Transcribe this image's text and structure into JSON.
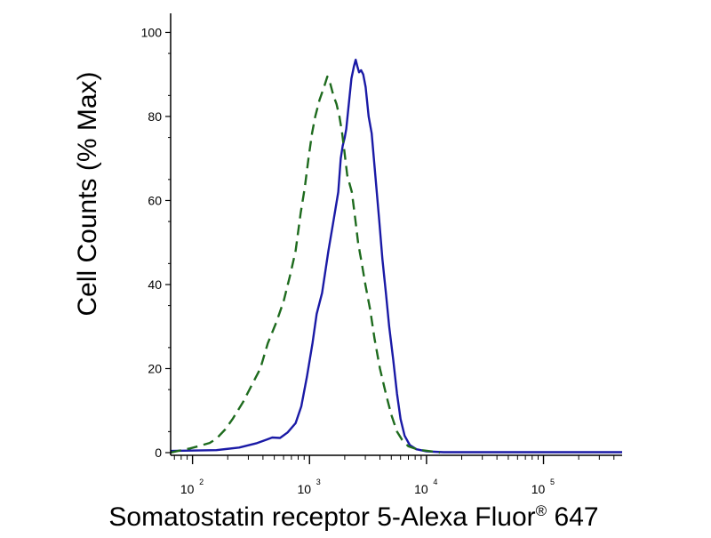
{
  "chart_data": {
    "type": "line",
    "title": "",
    "xlabel": "Somatostatin receptor 5-Alexa Fluor",
    "xlabel_superscript": "®",
    "xlabel_suffix": " 647",
    "ylabel": "Cell Counts (% Max)",
    "x_scale": "log",
    "xlim": [
      65,
      470000
    ],
    "ylim": [
      0,
      102
    ],
    "grid": false,
    "legend": "none",
    "x_ticks": [
      {
        "base": "10",
        "exp": "2",
        "value": 100
      },
      {
        "base": "10",
        "exp": "3",
        "value": 1000
      },
      {
        "base": "10",
        "exp": "4",
        "value": 10000
      },
      {
        "base": "10",
        "exp": "5",
        "value": 100000
      }
    ],
    "y_ticks": [
      {
        "label": "0",
        "value": 0
      },
      {
        "label": "20",
        "value": 20
      },
      {
        "label": "40",
        "value": 40
      },
      {
        "label": "60",
        "value": 60
      },
      {
        "label": "80",
        "value": 80
      },
      {
        "label": "100",
        "value": 100
      }
    ],
    "series": [
      {
        "color": "#1a1aa6",
        "style": "solid",
        "points": [
          [
            65,
            0.4
          ],
          [
            160,
            0.6
          ],
          [
            250,
            1.2
          ],
          [
            350,
            2.2
          ],
          [
            430,
            3.1
          ],
          [
            480,
            3.6
          ],
          [
            560,
            3.5
          ],
          [
            650,
            4.8
          ],
          [
            760,
            7
          ],
          [
            850,
            11
          ],
          [
            950,
            18
          ],
          [
            1060,
            26
          ],
          [
            1150,
            33
          ],
          [
            1280,
            38
          ],
          [
            1450,
            48
          ],
          [
            1600,
            55
          ],
          [
            1760,
            62
          ],
          [
            1850,
            70
          ],
          [
            1920,
            73
          ],
          [
            2000,
            75
          ],
          [
            2060,
            77
          ],
          [
            2150,
            82
          ],
          [
            2280,
            89
          ],
          [
            2400,
            92
          ],
          [
            2480,
            93.5
          ],
          [
            2560,
            92
          ],
          [
            2650,
            90.5
          ],
          [
            2760,
            91
          ],
          [
            2880,
            90
          ],
          [
            3020,
            87
          ],
          [
            3200,
            80
          ],
          [
            3400,
            76
          ],
          [
            3650,
            66
          ],
          [
            3950,
            55
          ],
          [
            4200,
            46
          ],
          [
            4500,
            38
          ],
          [
            4800,
            30
          ],
          [
            5200,
            22
          ],
          [
            5600,
            14
          ],
          [
            6000,
            8
          ],
          [
            6500,
            4
          ],
          [
            7200,
            1.8
          ],
          [
            8200,
            0.8
          ],
          [
            10000,
            0.3
          ],
          [
            14000,
            0.1
          ],
          [
            100000,
            0.1
          ],
          [
            470000,
            0.1
          ]
        ]
      },
      {
        "color": "#1e6b1e",
        "style": "dashed",
        "points": [
          [
            65,
            0
          ],
          [
            75,
            0.4
          ],
          [
            95,
            1
          ],
          [
            115,
            1.6
          ],
          [
            140,
            2.3
          ],
          [
            160,
            3.3
          ],
          [
            190,
            5.5
          ],
          [
            220,
            8
          ],
          [
            270,
            12
          ],
          [
            320,
            16
          ],
          [
            380,
            20
          ],
          [
            440,
            26
          ],
          [
            520,
            31
          ],
          [
            600,
            36
          ],
          [
            680,
            42
          ],
          [
            760,
            48
          ],
          [
            840,
            57
          ],
          [
            910,
            63
          ],
          [
            980,
            70
          ],
          [
            1050,
            76
          ],
          [
            1120,
            80
          ],
          [
            1220,
            84
          ],
          [
            1330,
            87
          ],
          [
            1420,
            89.5
          ],
          [
            1500,
            88
          ],
          [
            1600,
            85
          ],
          [
            1700,
            83
          ],
          [
            1800,
            80
          ],
          [
            1900,
            76
          ],
          [
            2000,
            71
          ],
          [
            2100,
            66
          ],
          [
            2200,
            64
          ],
          [
            2300,
            62
          ],
          [
            2450,
            56
          ],
          [
            2600,
            50
          ],
          [
            2800,
            45
          ],
          [
            3000,
            40
          ],
          [
            3300,
            34
          ],
          [
            3600,
            27
          ],
          [
            4000,
            20
          ],
          [
            4500,
            14
          ],
          [
            5000,
            9
          ],
          [
            5600,
            5
          ],
          [
            6200,
            3
          ],
          [
            7000,
            1.5
          ],
          [
            8500,
            0.7
          ],
          [
            11000,
            0.3
          ],
          [
            13000,
            0
          ]
        ]
      }
    ]
  }
}
